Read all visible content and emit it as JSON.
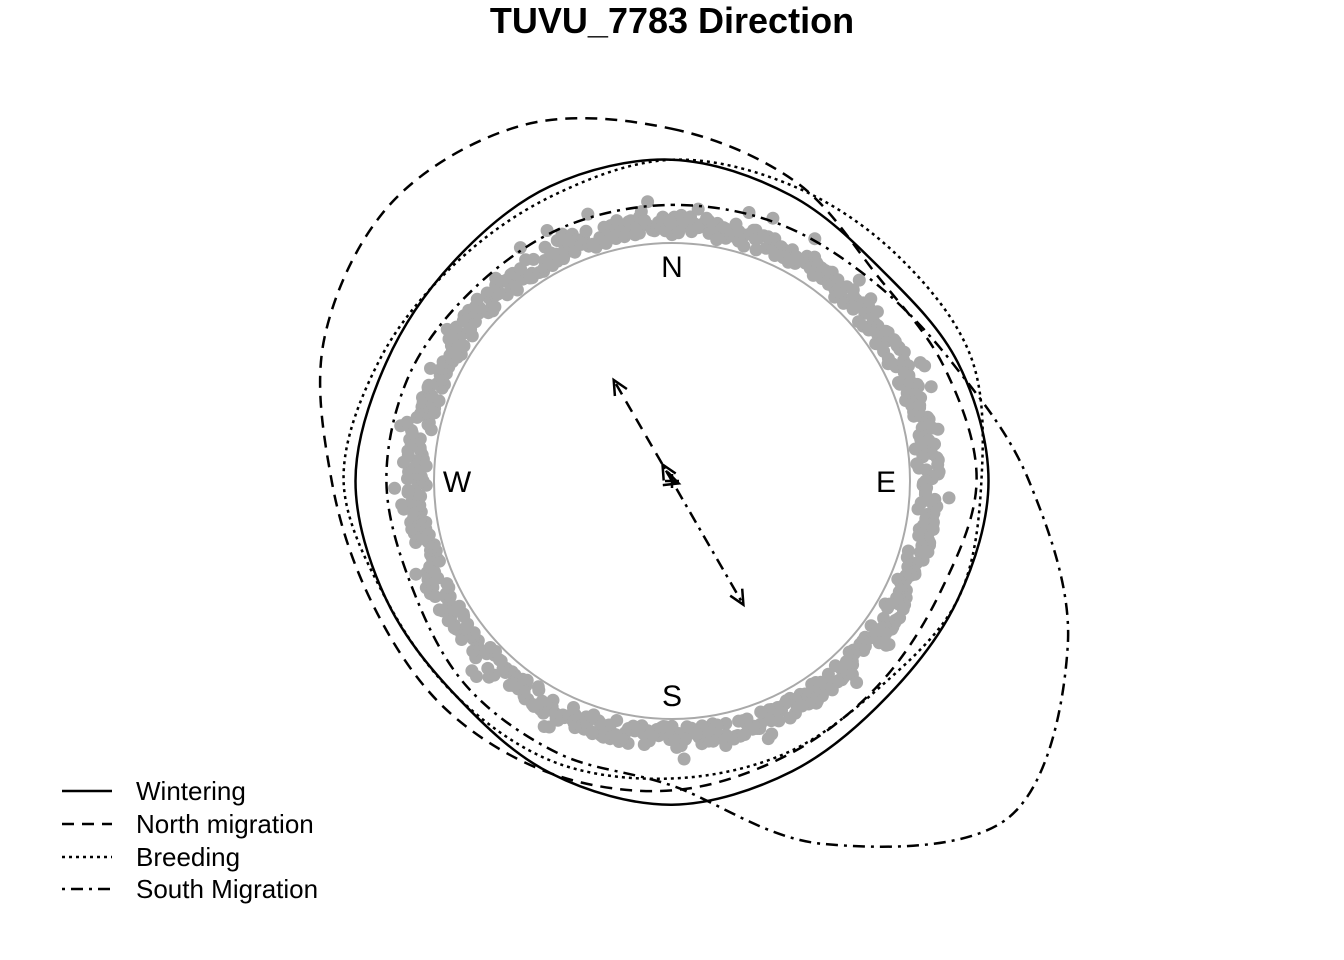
{
  "chart_data": {
    "type": "circular",
    "title": "TUVU_7783 Direction",
    "compass_labels": {
      "north": "N",
      "east": "E",
      "south": "S",
      "west": "W"
    },
    "rose_direction_degrees": [
      0,
      22.5,
      45,
      67.5,
      90,
      112.5,
      135,
      157.5,
      180,
      202.5,
      225,
      247.5,
      270,
      292.5,
      315,
      337.5
    ],
    "series": [
      {
        "name": "Wintering",
        "line_style": "solid",
        "density_radius": [
          1.35,
          1.3,
          1.25,
          1.3,
          1.33,
          1.3,
          1.28,
          1.32,
          1.36,
          1.33,
          1.28,
          1.3,
          1.33,
          1.3,
          1.3,
          1.34
        ],
        "mean_direction_deg": 110,
        "mean_resultant_length": 0.03
      },
      {
        "name": "North migration",
        "line_style": "dashed",
        "density_radius": [
          1.48,
          1.36,
          1.22,
          1.24,
          1.28,
          1.22,
          1.22,
          1.25,
          1.3,
          1.33,
          1.35,
          1.36,
          1.43,
          1.58,
          1.66,
          1.62
        ],
        "mean_direction_deg": 330,
        "mean_resultant_length": 0.49
      },
      {
        "name": "Breeding",
        "line_style": "dotted",
        "density_radius": [
          1.35,
          1.34,
          1.34,
          1.36,
          1.3,
          1.3,
          1.23,
          1.24,
          1.25,
          1.28,
          1.28,
          1.3,
          1.38,
          1.33,
          1.29,
          1.3
        ],
        "mean_direction_deg": 330,
        "mean_resultant_length": 0.08
      },
      {
        "name": "South Migration",
        "line_style": "dotdash",
        "density_radius": [
          1.16,
          1.17,
          1.19,
          1.28,
          1.5,
          1.8,
          2.0,
          1.65,
          1.28,
          1.24,
          1.22,
          1.18,
          1.2,
          1.19,
          1.16,
          1.16
        ],
        "mean_direction_deg": 150,
        "mean_resultant_length": 0.6
      }
    ],
    "points": {
      "color": "#a9a9a9"
    },
    "legend": {
      "position": "bottom-left"
    }
  }
}
